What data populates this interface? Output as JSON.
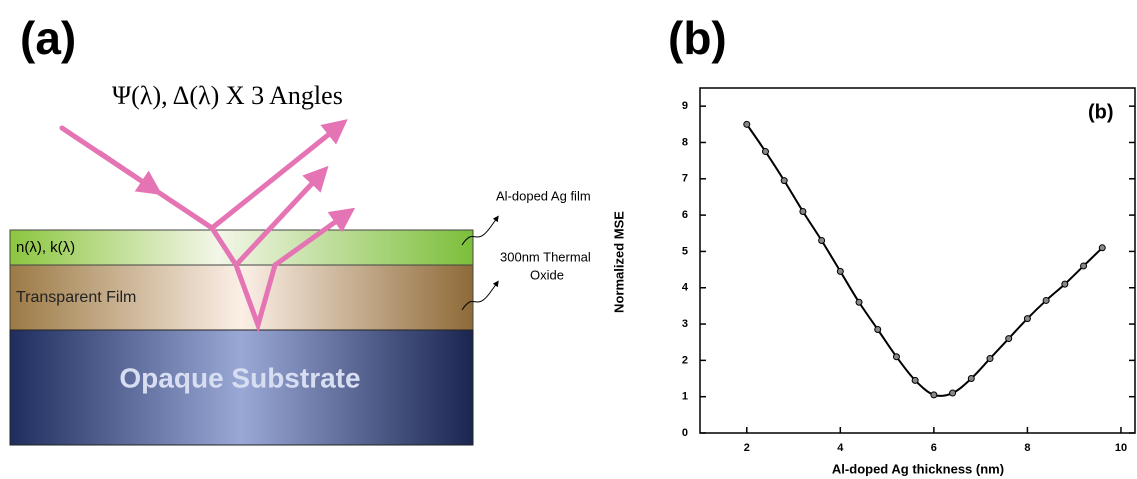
{
  "diagram": {
    "panel_label": "(a)",
    "title": "Ψ(λ), Δ(λ) X 3 Angles",
    "layers": [
      "n(λ), k(λ)",
      "Transparent Film",
      "Opaque Substrate"
    ],
    "callouts": [
      [
        "Al-doped Ag film"
      ],
      [
        "300nm Thermal",
        "Oxide"
      ]
    ]
  },
  "chart_data": {
    "type": "line",
    "panel_label": "(b)",
    "inset_label": "(b)",
    "x_label": "Al-doped Ag thickness (nm)",
    "y_label": "Normalized MSE",
    "x": [
      2,
      2.4,
      2.8,
      3.2,
      3.6,
      4.0,
      4.4,
      4.8,
      5.2,
      5.6,
      6.0,
      6.4,
      6.8,
      7.2,
      7.6,
      8.0,
      8.4,
      8.8,
      9.2,
      9.6
    ],
    "series": [
      {
        "color": "#000000",
        "values": [
          8.5,
          7.75,
          6.95,
          6.1,
          5.3,
          4.45,
          3.6,
          2.85,
          2.1,
          1.45,
          1.05,
          1.1,
          1.5,
          2.05,
          2.6,
          3.15,
          3.65,
          4.1,
          4.6,
          5.1
        ]
      }
    ],
    "xlim": [
      1,
      10.3
    ],
    "ylim": [
      0,
      9.5
    ],
    "xticks": [
      2,
      4,
      6,
      8,
      10
    ],
    "yticks": [
      0,
      1,
      2,
      3,
      4,
      5,
      6,
      7,
      8,
      9
    ]
  }
}
